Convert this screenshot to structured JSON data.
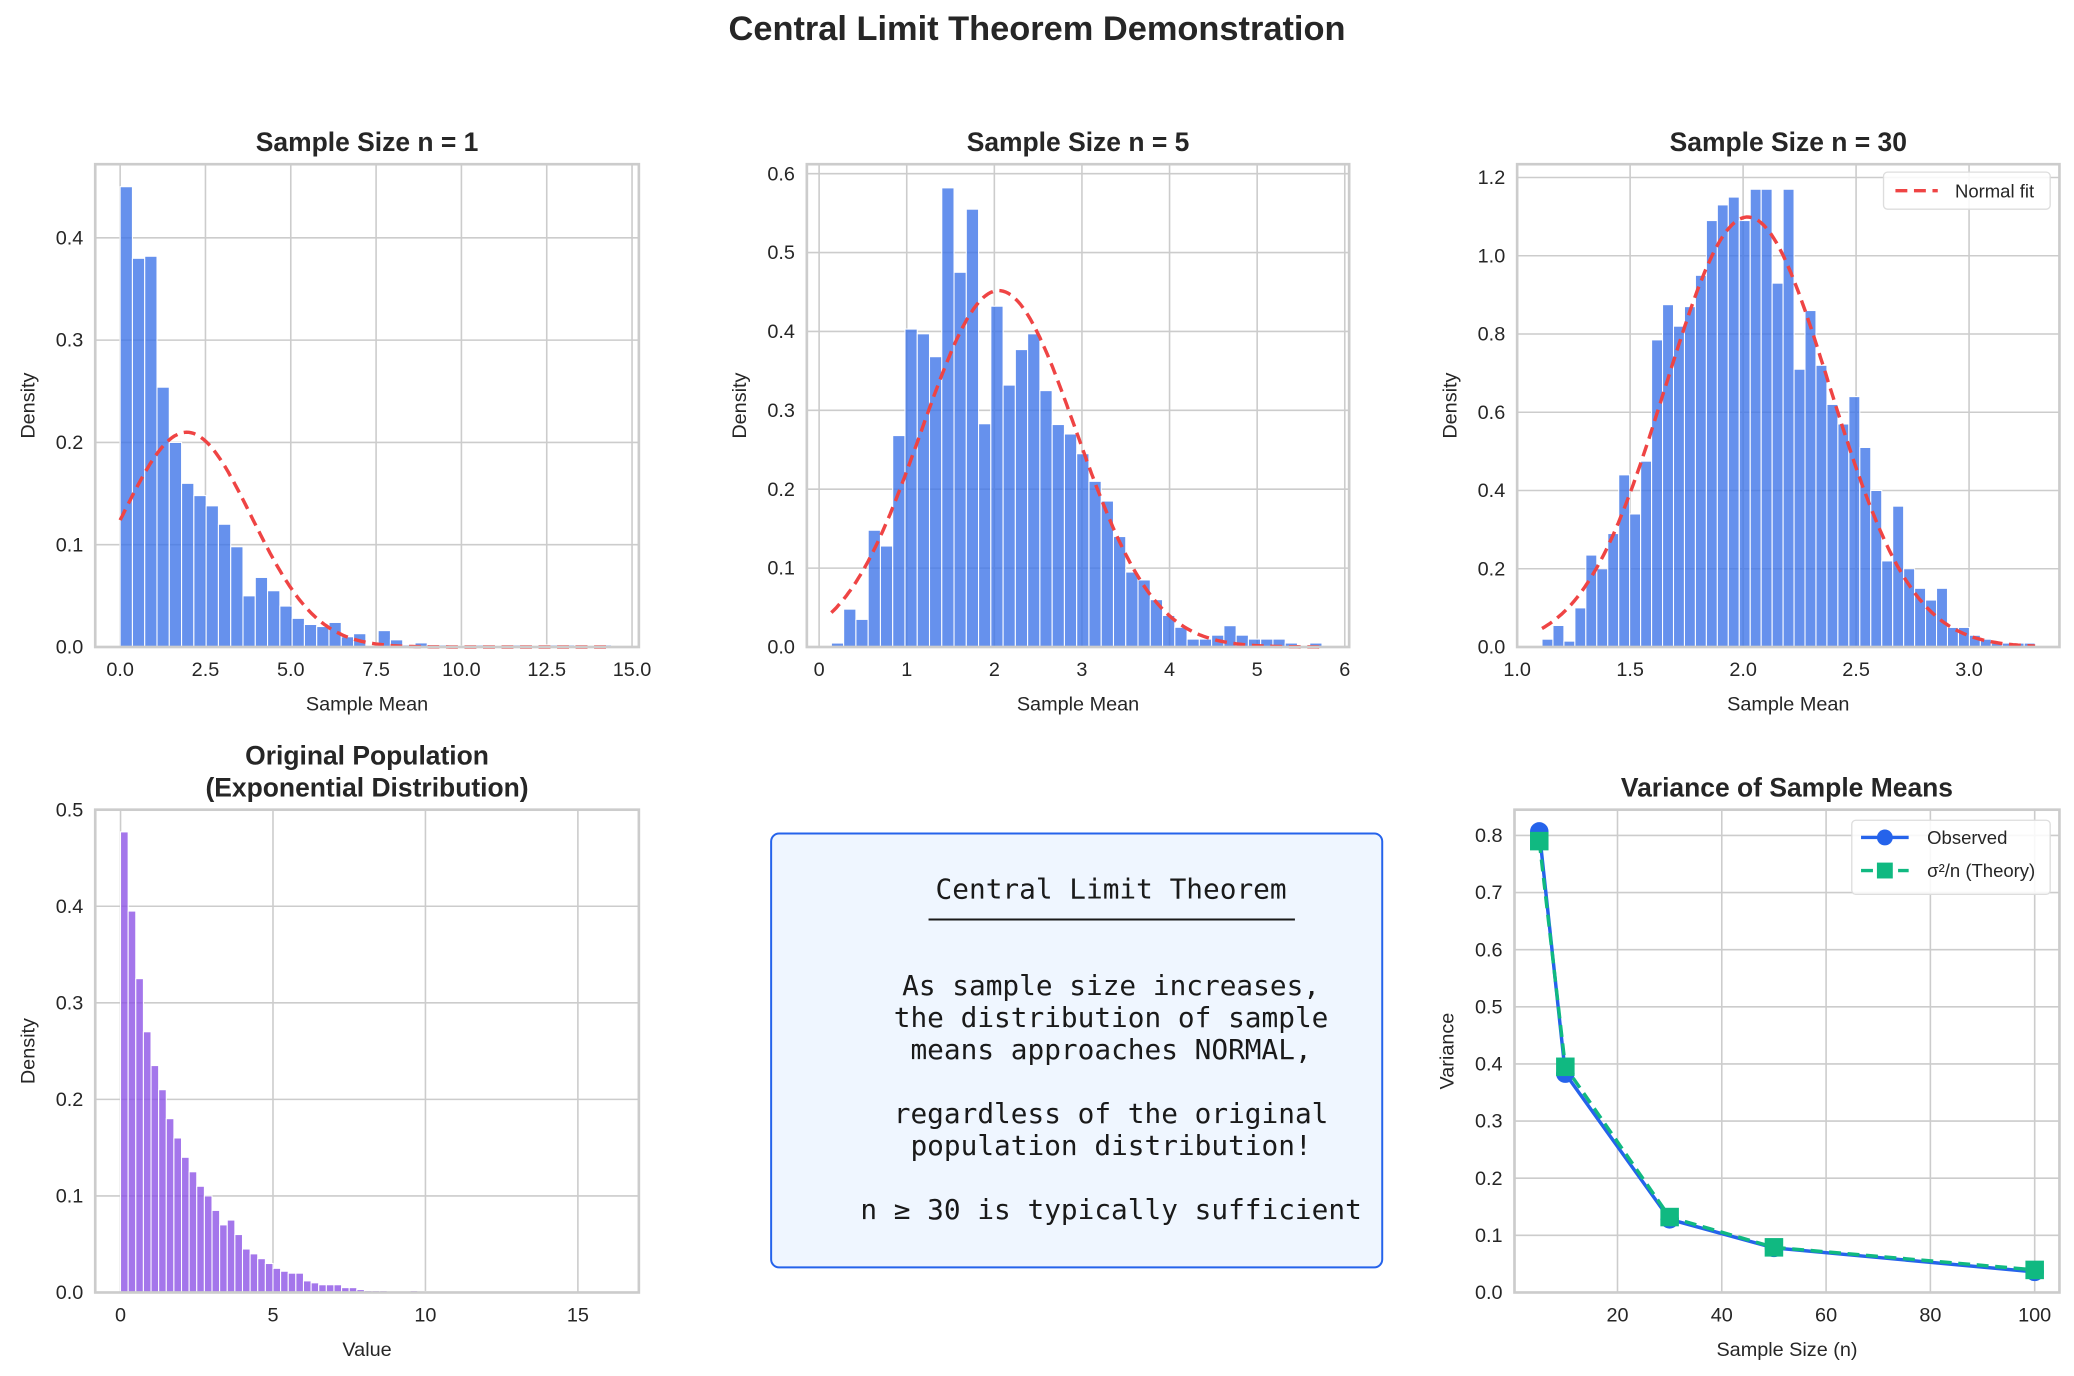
{
  "suptitle": "Central Limit Theorem Demonstration",
  "colors": {
    "bars_sample": "#3b72e8",
    "bars_population": "#8b4fe6",
    "normal_fit": "#ef4444",
    "observed": "#2563eb",
    "theory": "#10b981",
    "box_fill": "#eff6ff",
    "box_edge": "#2563eb",
    "grid": "#cccccc"
  },
  "textbox": {
    "title": "Central Limit Theorem",
    "lines": [
      "As sample size increases,",
      "the distribution of sample",
      "means approaches NORMAL,",
      "",
      "regardless of the original",
      "population distribution!",
      "",
      "n ≥ 30 is typically sufficient"
    ]
  },
  "chart_data": [
    {
      "type": "bar",
      "title": "Sample Size n = 1",
      "xlabel": "Sample Mean",
      "ylabel": "Density",
      "xlim": [
        -0.73,
        15.2
      ],
      "ylim": [
        0,
        0.472
      ],
      "xticks": [
        "0.0",
        "2.5",
        "5.0",
        "7.5",
        "10.0",
        "12.5",
        "15.0"
      ],
      "xtick_values": [
        0,
        2.5,
        5,
        7.5,
        10,
        12.5,
        15
      ],
      "yticks": [
        "0.0",
        "0.1",
        "0.2",
        "0.3",
        "0.4"
      ],
      "ytick_values": [
        0,
        0.1,
        0.2,
        0.3,
        0.4
      ],
      "bin_start": 0.0,
      "bin_width": 0.36,
      "values": [
        0.45,
        0.38,
        0.382,
        0.254,
        0.2,
        0.16,
        0.148,
        0.138,
        0.12,
        0.098,
        0.05,
        0.068,
        0.055,
        0.04,
        0.028,
        0.022,
        0.02,
        0.024,
        0.01,
        0.013,
        0,
        0.016,
        0.007,
        0.002,
        0.004,
        0.002,
        0.002,
        0.001,
        0.002,
        0.002,
        0.001,
        0.002,
        0.002,
        0.001,
        0.002,
        0.002,
        0.002,
        0.002,
        0.001,
        0.002
      ],
      "normal_fit": {
        "mean": 1.95,
        "std": 1.9,
        "label": "Normal fit"
      },
      "grid": true
    },
    {
      "type": "bar",
      "title": "Sample Size n = 5",
      "xlabel": "Sample Mean",
      "ylabel": "Density",
      "xlim": [
        -0.14,
        6.05
      ],
      "ylim": [
        0,
        0.612
      ],
      "xticks": [
        "0",
        "1",
        "2",
        "3",
        "4",
        "5",
        "6"
      ],
      "xtick_values": [
        0,
        1,
        2,
        3,
        4,
        5,
        6
      ],
      "yticks": [
        "0.0",
        "0.1",
        "0.2",
        "0.3",
        "0.4",
        "0.5",
        "0.6"
      ],
      "ytick_values": [
        0,
        0.1,
        0.2,
        0.3,
        0.4,
        0.5,
        0.6
      ],
      "bin_start": 0.14,
      "bin_width": 0.14,
      "values": [
        0.005,
        0.048,
        0.035,
        0.148,
        0.128,
        0.268,
        0.403,
        0.397,
        0.368,
        0.582,
        0.475,
        0.555,
        0.283,
        0.432,
        0.332,
        0.377,
        0.397,
        0.325,
        0.282,
        0.27,
        0.245,
        0.21,
        0.185,
        0.14,
        0.095,
        0.085,
        0.06,
        0.04,
        0.025,
        0.01,
        0.01,
        0.015,
        0.027,
        0.015,
        0.01,
        0.01,
        0.01,
        0.005,
        0,
        0.005
      ],
      "normal_fit": {
        "mean": 2.05,
        "std": 0.883,
        "label": "Normal fit"
      },
      "grid": true
    },
    {
      "type": "bar",
      "title": "Sample Size n = 30",
      "xlabel": "Sample Mean",
      "ylabel": "Density",
      "xlim": [
        1.0,
        3.4
      ],
      "ylim": [
        0,
        1.234
      ],
      "xticks": [
        "1.0",
        "1.5",
        "2.0",
        "2.5",
        "3.0"
      ],
      "xtick_values": [
        1,
        1.5,
        2,
        2.5,
        3
      ],
      "yticks": [
        "0.0",
        "0.2",
        "0.4",
        "0.6",
        "0.8",
        "1.0",
        "1.2"
      ],
      "ytick_values": [
        0,
        0.2,
        0.4,
        0.6,
        0.8,
        1.0,
        1.2
      ],
      "bin_start": 1.11,
      "bin_width": 0.0485,
      "values": [
        0.02,
        0.055,
        0.015,
        0.1,
        0.235,
        0.2,
        0.29,
        0.44,
        0.34,
        0.475,
        0.785,
        0.875,
        0.82,
        0.87,
        0.95,
        1.09,
        1.13,
        1.15,
        1.09,
        1.17,
        1.17,
        0.93,
        1.17,
        0.71,
        0.86,
        0.72,
        0.62,
        0.57,
        0.64,
        0.51,
        0.4,
        0.22,
        0.36,
        0.2,
        0.15,
        0.12,
        0.15,
        0.05,
        0.05,
        0.03,
        0.02,
        0.01,
        0.01,
        0.01,
        0.01
      ],
      "normal_fit": {
        "mean": 2.02,
        "std": 0.363,
        "label": "Normal fit"
      },
      "legend": "top-right",
      "grid": true
    },
    {
      "type": "bar",
      "title": "Original Population\n(Exponential Distribution)",
      "xlabel": "Value",
      "ylabel": "Density",
      "xlim": [
        -0.83,
        17.0
      ],
      "ylim": [
        0,
        0.5
      ],
      "xticks": [
        "0",
        "5",
        "10",
        "15"
      ],
      "xtick_values": [
        0,
        5,
        10,
        15
      ],
      "yticks": [
        "0.0",
        "0.1",
        "0.2",
        "0.3",
        "0.4",
        "0.5"
      ],
      "ytick_values": [
        0,
        0.1,
        0.2,
        0.3,
        0.4,
        0.5
      ],
      "bin_start": 0.0,
      "bin_width": 0.25,
      "values": [
        0.477,
        0.395,
        0.325,
        0.27,
        0.235,
        0.21,
        0.18,
        0.16,
        0.14,
        0.125,
        0.11,
        0.1,
        0.085,
        0.07,
        0.075,
        0.06,
        0.045,
        0.04,
        0.035,
        0.03,
        0.025,
        0.022,
        0.02,
        0.02,
        0.012,
        0.01,
        0.008,
        0.008,
        0.008,
        0.005,
        0.005,
        0.003,
        0.002,
        0.002,
        0.002,
        0.001,
        0.001,
        0.001,
        0.002,
        0.001,
        0.001,
        0.001,
        0.001,
        0,
        0.001,
        0,
        0.001,
        0,
        0,
        0.001,
        0,
        0,
        0,
        0.001,
        0,
        0,
        0,
        0,
        0,
        0,
        0,
        0,
        0,
        0.0005
      ],
      "grid": true
    },
    {
      "type": "line",
      "title": "Variance of Sample Means",
      "xlabel": "Sample Size (n)",
      "ylabel": "Variance",
      "xlim": [
        0.25,
        104.75
      ],
      "ylim": [
        0,
        0.845
      ],
      "xticks": [
        "20",
        "40",
        "60",
        "80",
        "100"
      ],
      "xtick_values": [
        20,
        40,
        60,
        80,
        100
      ],
      "yticks": [
        "0.0",
        "0.1",
        "0.2",
        "0.3",
        "0.4",
        "0.5",
        "0.6",
        "0.7",
        "0.8"
      ],
      "ytick_values": [
        0,
        0.1,
        0.2,
        0.3,
        0.4,
        0.5,
        0.6,
        0.7,
        0.8
      ],
      "x": [
        5,
        10,
        30,
        50,
        100
      ],
      "series": [
        {
          "name": "Observed",
          "values": [
            0.807,
            0.383,
            0.128,
            0.078,
            0.036
          ],
          "marker": "circle",
          "linestyle": "solid"
        },
        {
          "name": "σ²/n (Theory)",
          "values": [
            0.79,
            0.395,
            0.132,
            0.079,
            0.0395
          ],
          "marker": "square",
          "linestyle": "dashed"
        }
      ],
      "legend": "top-right",
      "grid": true
    }
  ]
}
